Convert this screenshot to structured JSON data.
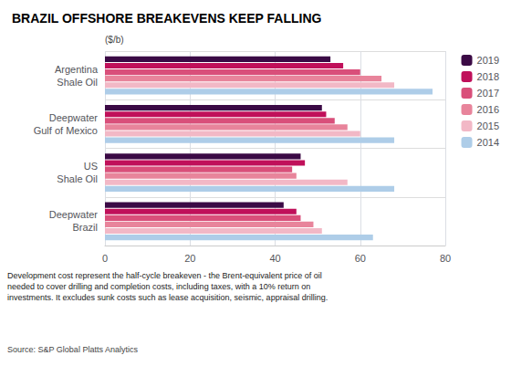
{
  "chart_data": {
    "type": "bar",
    "orientation": "horizontal",
    "title": "BRAZIL OFFSHORE BREAKEVENS KEEP FALLING",
    "xlabel": "($/b)",
    "annotations": [
      "Development cost represent the half-cycle breakeven - the Brent-equivalent price of oil\nneeded to cover drilling and completion costs, including taxes, with a 10% return on\ninvestments. It excludes sunk costs such as lease acquisition, seismic, appraisal drilling.",
      "Source: S&P Global Platts Analytics"
    ],
    "categories": [
      "Argentina\nShale Oil",
      "Deepwater\nGulf of Mexico",
      "US\nShale Oil",
      "Deepwater\nBrazil"
    ],
    "series": [
      {
        "name": "2019",
        "color": "#3b0a45",
        "values": [
          53,
          51,
          46,
          42
        ]
      },
      {
        "name": "2018",
        "color": "#c0105a",
        "values": [
          56,
          52,
          47,
          45
        ]
      },
      {
        "name": "2017",
        "color": "#d94f7a",
        "values": [
          60,
          54,
          44,
          46
        ]
      },
      {
        "name": "2016",
        "color": "#e8849b",
        "values": [
          65,
          57,
          45,
          49
        ]
      },
      {
        "name": "2015",
        "color": "#f2b8c6",
        "values": [
          68,
          60,
          57,
          51
        ]
      },
      {
        "name": "2014",
        "color": "#aecde8",
        "values": [
          77,
          68,
          68,
          63
        ]
      }
    ],
    "xlim": [
      0,
      80
    ],
    "xticks": [
      0,
      20,
      40,
      60,
      80
    ],
    "grid": true,
    "legend": "right"
  }
}
